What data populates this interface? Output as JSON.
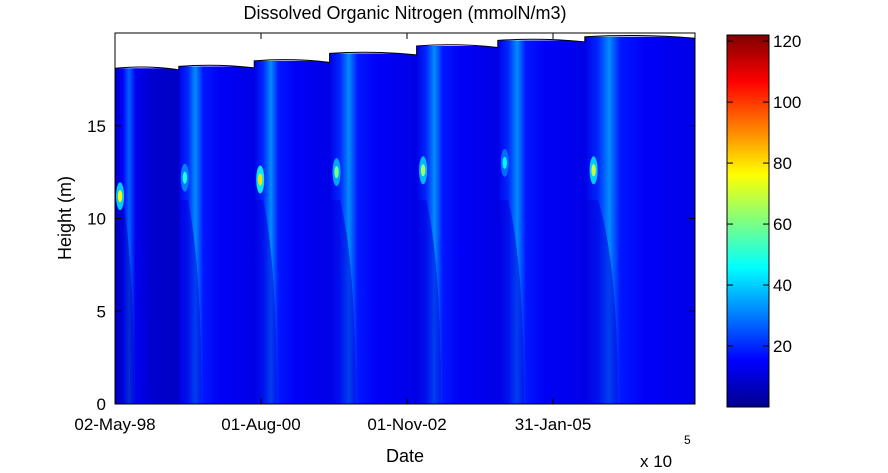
{
  "chart_data": {
    "type": "heatmap",
    "title": "Dissolved Organic Nitrogen (mmolN/m3)",
    "xlabel": "Date",
    "ylabel": "Height (m)",
    "x_ticks": [
      "02-May-98",
      "01-Aug-00",
      "01-Nov-02",
      "31-Jan-05"
    ],
    "x_multiplier": "x 10",
    "x_multiplier_exponent": "5",
    "y_ticks": [
      "0",
      "5",
      "10",
      "15"
    ],
    "ylim": [
      0,
      20
    ],
    "colorbar": {
      "colormap": "jet",
      "range": [
        0,
        122
      ],
      "ticks": [
        "20",
        "40",
        "60",
        "80",
        "100",
        "120"
      ]
    },
    "bloom_cycles": [
      {
        "start_fraction": 0.0,
        "surface_height_m": 18.1,
        "background_value": 9,
        "peak_value": 75,
        "peak_height_m": 11.2
      },
      {
        "start_fraction": 0.11,
        "surface_height_m": 18.2,
        "background_value": 14,
        "peak_value": 50,
        "peak_height_m": 12.2
      },
      {
        "start_fraction": 0.24,
        "surface_height_m": 18.5,
        "background_value": 14,
        "peak_value": 80,
        "peak_height_m": 12.1
      },
      {
        "start_fraction": 0.37,
        "surface_height_m": 18.9,
        "background_value": 14,
        "peak_value": 60,
        "peak_height_m": 12.5
      },
      {
        "start_fraction": 0.52,
        "surface_height_m": 19.3,
        "background_value": 14,
        "peak_value": 65,
        "peak_height_m": 12.6
      },
      {
        "start_fraction": 0.66,
        "surface_height_m": 19.6,
        "background_value": 14,
        "peak_value": 45,
        "peak_height_m": 13.0
      },
      {
        "start_fraction": 0.81,
        "surface_height_m": 19.8,
        "background_value": 14,
        "peak_value": 70,
        "peak_height_m": 12.6
      }
    ]
  }
}
